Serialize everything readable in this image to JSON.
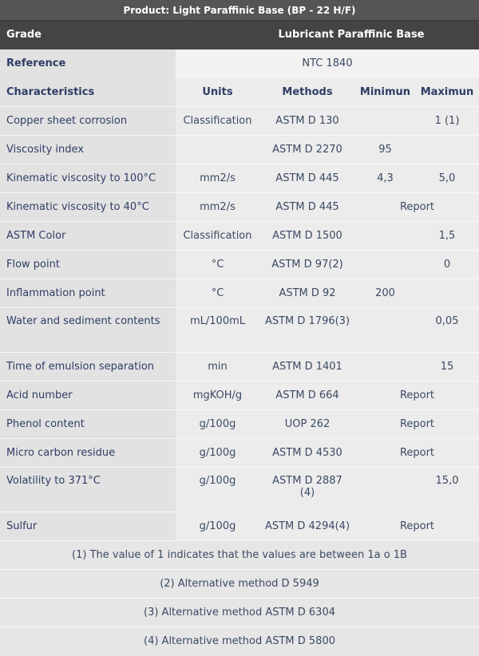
{
  "product_title": "Product: Light Paraffinic Base (BP - 22 H/F)",
  "grade": {
    "label": "Grade",
    "value": "Lubricant Paraffinic Base"
  },
  "reference": {
    "label": "Reference",
    "value": "NTC 1840"
  },
  "headers": {
    "characteristics": "Characteristics",
    "units": "Units",
    "methods": "Methods",
    "minimum": "Minimun",
    "maximum": "Maximun"
  },
  "rows": [
    {
      "name": "Copper sheet corrosion",
      "units": "Classification",
      "method": "ASTM D 130",
      "min": "",
      "max": "1 (1)",
      "report": ""
    },
    {
      "name": "Viscosity index",
      "units": "",
      "method": "ASTM D 2270",
      "min": "95",
      "max": "",
      "report": ""
    },
    {
      "name": "Kinematic viscosity to 100°C",
      "units": "mm2/s",
      "method": "ASTM D 445",
      "min": "4,3",
      "max": "5,0",
      "report": ""
    },
    {
      "name": "Kinematic viscosity to 40°C",
      "units": "mm2/s",
      "method": "ASTM D 445",
      "min": "",
      "max": "",
      "report": "Report"
    },
    {
      "name": "ASTM Color",
      "units": "Classification",
      "method": "ASTM D 1500",
      "min": "",
      "max": "1,5",
      "report": ""
    },
    {
      "name": "Flow point",
      "units": "°C",
      "method": "ASTM D 97(2)",
      "min": "",
      "max": "0",
      "report": ""
    },
    {
      "name": "Inflammation point",
      "units": "°C",
      "method": "ASTM D 92",
      "min": "200",
      "max": "",
      "report": ""
    },
    {
      "name": "Water and sediment contents",
      "units": "mL/100mL",
      "method": "ASTM D 1796(3)",
      "min": "",
      "max": "0,05",
      "report": ""
    },
    {
      "name": "Time of emulsion separation",
      "units": "min",
      "method": "ASTM D 1401",
      "min": "",
      "max": "15",
      "report": ""
    },
    {
      "name": "Acid number",
      "units": "mgKOH/g",
      "method": "ASTM D 664",
      "min": "",
      "max": "",
      "report": "Report"
    },
    {
      "name": "Phenol content",
      "units": "g/100g",
      "method": "UOP 262",
      "min": "",
      "max": "",
      "report": "Report"
    },
    {
      "name": "Micro carbon residue",
      "units": "g/100g",
      "method": "ASTM D 4530",
      "min": "",
      "max": "",
      "report": "Report"
    },
    {
      "name": "Volatility to 371°C",
      "units": "g/100g",
      "method": "ASTM D 2887 (4)",
      "min": "",
      "max": "15,0",
      "report": ""
    },
    {
      "name": "Sulfur",
      "units": "g/100g",
      "method": "ASTM D 4294(4)",
      "min": "",
      "max": "",
      "report": "Report"
    }
  ],
  "notes": [
    "(1) The value of 1 indicates that the values are between 1a o 1B",
    "(2) Alternative method D 5949",
    "(3) Alternative method ASTM D 6304",
    "(4) Alternative method ASTM D 5800"
  ]
}
